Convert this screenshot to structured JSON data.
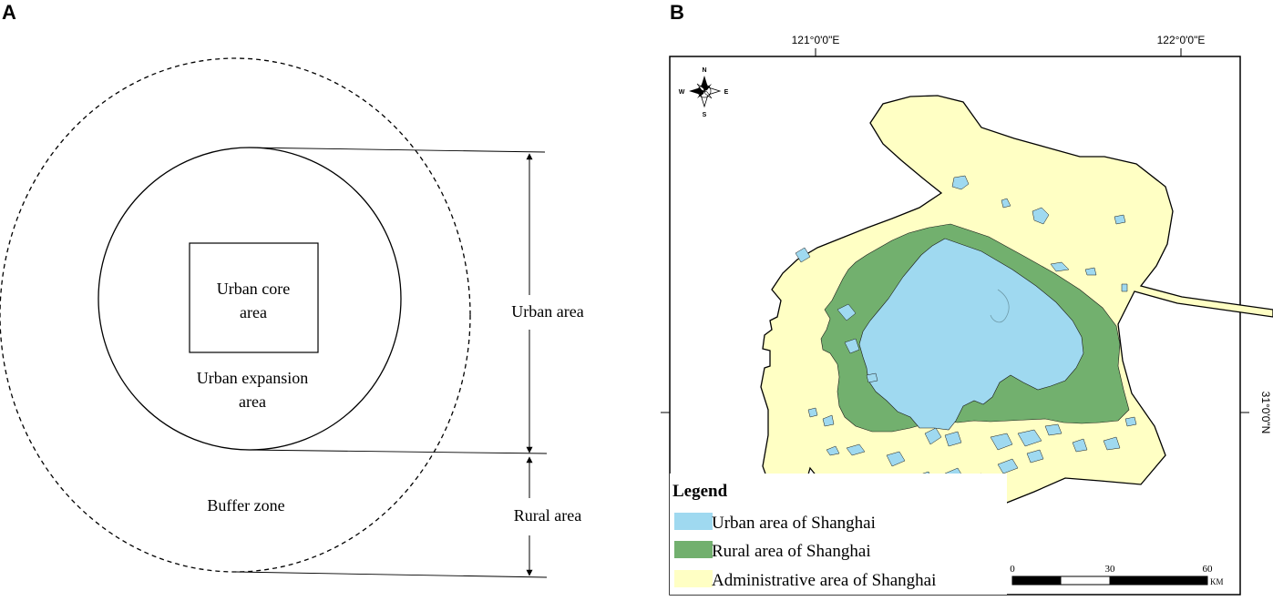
{
  "panel_a": {
    "label": "A",
    "core_line1": "Urban core",
    "core_line2": "area",
    "expansion_line1": "Urban expansion",
    "expansion_line2": "area",
    "buffer_label": "Buffer zone",
    "urban_area_label": "Urban area",
    "rural_area_label": "Rural area"
  },
  "panel_b": {
    "label": "B",
    "lon_left": "121°0'0\"E",
    "lon_right": "122°0'0\"E",
    "lat_label": "31°0'0\"N",
    "compass": {
      "n": "N",
      "s": "S",
      "e": "E",
      "w": "W"
    },
    "legend": {
      "title": "Legend",
      "items": [
        {
          "label": "Urban area of Shanghai",
          "color": "#9fd9f0"
        },
        {
          "label": "Rural area of Shanghai",
          "color": "#72b06e"
        },
        {
          "label": "Administrative area of Shanghai",
          "color": "#ffffc4"
        }
      ]
    },
    "scalebar": {
      "ticks": [
        "0",
        "30",
        "60"
      ],
      "unit": "KM"
    }
  }
}
